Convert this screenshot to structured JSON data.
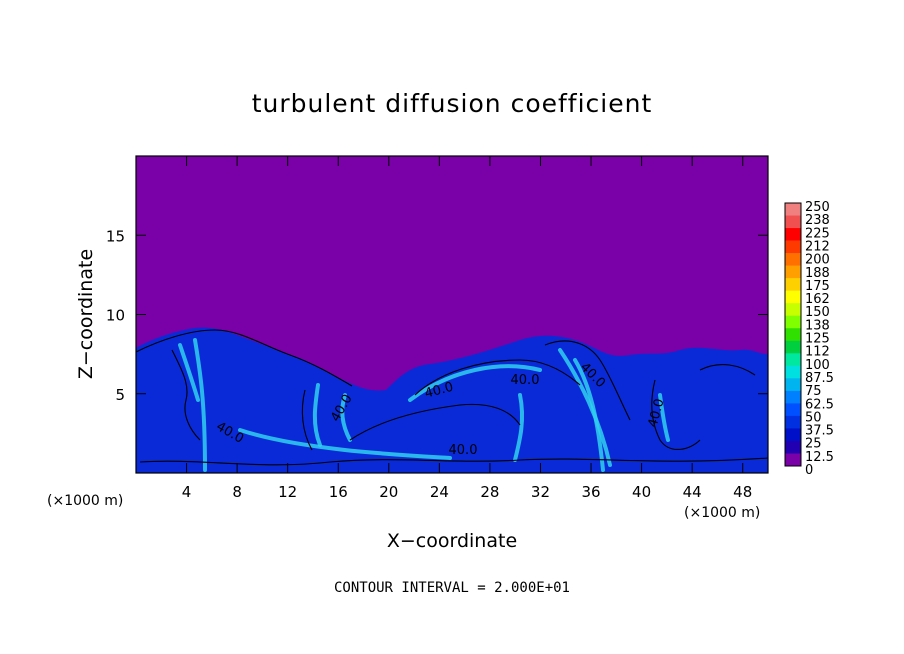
{
  "chart_data": {
    "type": "heatmap",
    "title": "turbulent diffusion coefficient",
    "xlabel": "X−coordinate",
    "ylabel": "Z−coordinate",
    "x_unit": "(×1000 m)",
    "x_unit_right": "(×1000 m)",
    "xlim": [
      0,
      50
    ],
    "ylim": [
      0,
      20
    ],
    "x_ticks": [
      4,
      8,
      12,
      16,
      20,
      24,
      28,
      32,
      36,
      40,
      44,
      48
    ],
    "y_ticks": [
      5,
      10,
      15
    ],
    "footer": "CONTOUR INTERVAL = 2.000E+01",
    "contour_labels": [
      "40.0",
      "40.0",
      "40.0",
      "40.0",
      "40.0",
      "40.0",
      "40.0"
    ],
    "colorbar": {
      "labels": [
        "250",
        "238",
        "225",
        "212",
        "200",
        "188",
        "175",
        "162",
        "150",
        "138",
        "125",
        "112",
        "100",
        "87.5",
        "75",
        "62.5",
        "50",
        "37.5",
        "25",
        "12.5",
        "0"
      ],
      "colors": [
        "#f08080",
        "#f05050",
        "#ff0000",
        "#ff3a00",
        "#ff7000",
        "#ffa000",
        "#ffd000",
        "#ffff00",
        "#c8ff00",
        "#80ff00",
        "#30e000",
        "#00d040",
        "#00e8a0",
        "#00e0e0",
        "#00b4f0",
        "#0080ff",
        "#0050ff",
        "#0030e0",
        "#0010c8",
        "#2000b0",
        "#7a00a8"
      ]
    },
    "colors": {
      "background_field": "#7a00a8",
      "turbulent_field": "#0a2ad8",
      "high_values": "#2fd0f0"
    }
  }
}
